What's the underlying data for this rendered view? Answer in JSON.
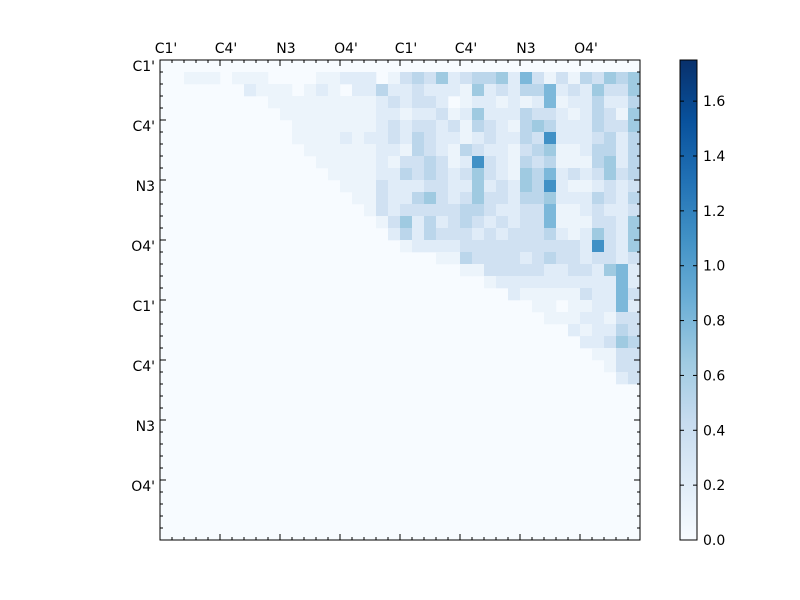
{
  "chart_data": {
    "type": "heatmap",
    "n": 40,
    "tick_labels": [
      "C1'",
      "C4'",
      "N3",
      "O4'",
      "C1'",
      "C4'",
      "N3",
      "O4'"
    ],
    "colorbar": {
      "min": 0.0,
      "max": 1.75,
      "ticks": [
        "0.0",
        "0.2",
        "0.4",
        "0.6",
        "0.8",
        "1.0",
        "1.2",
        "1.4",
        "1.6"
      ],
      "colors": [
        "#f7fbff",
        "#deebf7",
        "#c6dbef",
        "#9ecae1",
        "#6baed6",
        "#4292c6",
        "#2171b5",
        "#08519c",
        "#08306b"
      ]
    },
    "rows": [
      "0000000000000000000000000000000000000000",
      "0011101110000112220134352344526313143545",
      "0000000211101210224223222152324462325335",
      "0000000001111111112323320122121261224224",
      "0000000000111111112212231252224332124315",
      "0000000000011111112323323143214542224335",
      "0000000000011112122324322123224372223424",
      "0000000000001111112214321432213451124424",
      "0000000000000111112133431273214341114524",
      "0000000000000011112243432353215462323534",
      "0000000000000001113222332252325472112323",
      "0000000000000000113224532353324452224324",
      "0000000000000000013233333443223361123223",
      "0000000000000000001352423432323361113325",
      "0000000000000000000242433323233342125325",
      "0000000000000000000012222333333333327325",
      "0000000000000000000000011433332343323323",
      "0000000000000000000000000113333322332562",
      "0000000000000000000000000001222222222262",
      "0000000000000000000000000000021111132263",
      "0000000000000000000000000000000110112262",
      "0000000000000000000000000000000011122133",
      "0000000000000000000000000000000000212243",
      "0000000000000000000000000000000000022354",
      "0000000000000000000000000000000000001133",
      "0000000000000000000000000000000000000133",
      "0000000000000000000000000000000000000023",
      "0000000000000000000000000000000000000000",
      "0000000000000000000000000000000000000000",
      "0000000000000000000000000000000000000000",
      "0000000000000000000000000000000000000000",
      "0000000000000000000000000000000000000000",
      "0000000000000000000000000000000000000000",
      "0000000000000000000000000000000000000000",
      "0000000000000000000000000000000000000000",
      "0000000000000000000000000000000000000000",
      "0000000000000000000000000000000000000000",
      "0000000000000000000000000000000000000000",
      "0000000000000000000000000000000000000000",
      "0000000000000000000000000000000000000000"
    ],
    "scale": [
      0.0,
      0.1,
      0.2,
      0.35,
      0.5,
      0.65,
      0.8,
      1.1,
      1.3,
      1.5,
      1.7
    ],
    "title": "",
    "xlabel": "",
    "ylabel": ""
  }
}
